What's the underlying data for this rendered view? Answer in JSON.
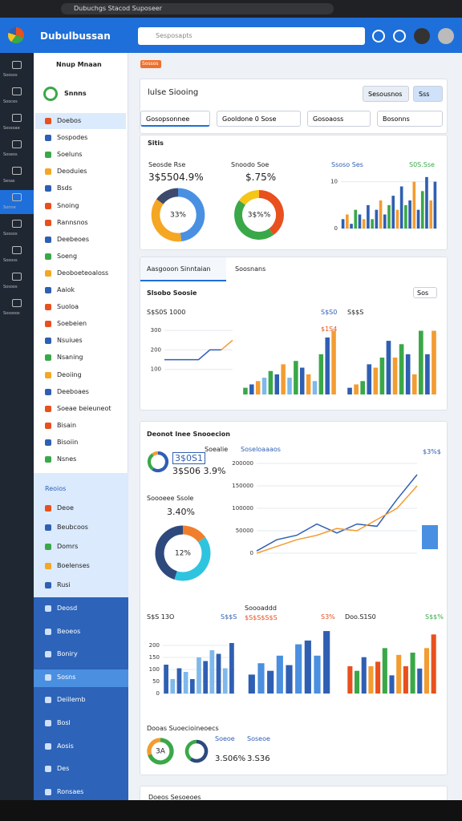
{
  "browser": {
    "url": "Dubuchgs Stacod Suposeer"
  },
  "header": {
    "title": "Dubulbussan",
    "search": "Sesposapts"
  },
  "rail": [
    "Soosos",
    "Sooces",
    "Sossoae",
    "Soseos",
    "Sesas",
    "Sonne",
    "Soosos",
    "Soooss",
    "Sosoos",
    "Sosooos"
  ],
  "sidebar": {
    "title": "Nnup Mnaan",
    "active": "Snnns",
    "items": [
      "Doebos",
      "Sospodes",
      "Soeluns",
      "Deoduies",
      "Bsds",
      "Snoing",
      "Rannsnos",
      "Deebeoes",
      "Soeng",
      "Deoboeteoaloss",
      "Aaiok",
      "Suoloa",
      "Soebeien",
      "Nsuiues",
      "Nsaning",
      "Deoiing",
      "Deeboaes",
      "Soeae beieuneot",
      "Bisain",
      "Bisoiin",
      "Nsnes"
    ],
    "section": "Reoios",
    "items2": [
      "Deoe",
      "Beubcoos",
      "Domrs",
      "Boelenses",
      "Rusi"
    ],
    "items3": [
      "Deosd",
      "Beoeos",
      "Boniry",
      "Sosns",
      "Deiilemb",
      "Bosl",
      "Aosis",
      "Des",
      "Ronsaes"
    ]
  },
  "main": {
    "chip": "Sossos",
    "title": "lulse Siooing",
    "button": "Sesousnos",
    "button2": "Sss",
    "filters": [
      "Gosopsonnee",
      "Gooldone 0 Sose",
      "Gosoaoss",
      "Bosonns"
    ],
    "card1": {
      "title": "Sitis",
      "l1": "Seosde Rse",
      "v1": "3$5504.9%",
      "l2": "Snoodo Soe",
      "v2": "$.75%",
      "l3": "Ssoso Ses",
      "l4": "S0S.Sse"
    },
    "card2": {
      "tab1": "Aasgooon Sinntaian",
      "tab2": "Soosnans",
      "subtitle": "Slsobo Soosie",
      "select": "Sos",
      "l1": "S$S0S 1000",
      "l2": "S$S0",
      "l3": "S$$S",
      "l4": "$1S4"
    },
    "card3": {
      "title": "Deonot lnee Snooecion",
      "l1": "Soealie",
      "v1": "3$0S1",
      "v2": "3$S06 3.9%",
      "l2": "Soseloaaaos",
      "l3": "$3%$",
      "l4": "Soooeee Ssole",
      "v3": "3.40%",
      "b1": "S$S 13O",
      "b2": "S$$S",
      "b3": "Soooaddd",
      "b4": "$S$S$S$S",
      "b5": "S3%",
      "b6": "Doo.S1S0",
      "b7": "S$$%",
      "d1": "Dooas Suoecioineoecs",
      "d2": "Soeoe",
      "d3": "Soseoe",
      "d4": "3.S06%",
      "d5": "3.S36"
    },
    "card4": {
      "title": "Doeos Sesoeoes"
    }
  },
  "charts": [
    {
      "type": "donut",
      "values": [
        48,
        37,
        15
      ],
      "colors": [
        "#4a90e2",
        "#f5a623",
        "#3d4a6b"
      ],
      "label": "33%"
    },
    {
      "type": "donut",
      "values": [
        40,
        45,
        15
      ],
      "colors": [
        "#e8501e",
        "#3aa848",
        "#f5c518"
      ],
      "label": "3$%%"
    },
    {
      "type": "bar",
      "values": [
        2,
        3,
        1,
        4,
        3,
        2,
        5,
        2,
        4,
        6,
        3,
        5,
        7,
        4,
        9,
        5,
        6,
        10,
        4,
        8,
        11,
        6,
        10
      ],
      "colors": [
        "#2f5fb3",
        "#f39c32",
        "#2f5fb3",
        "#3aa848"
      ],
      "ylim": [
        0,
        12
      ],
      "yticks": [
        0,
        10
      ]
    },
    {
      "type": "line",
      "series": [
        {
          "color": "#2f5fb3",
          "values": [
            150,
            150,
            150,
            150,
            200,
            200,
            null
          ]
        },
        {
          "color": "#f39c32",
          "values": [
            null,
            null,
            null,
            null,
            null,
            200,
            250
          ]
        }
      ],
      "ylim": [
        0,
        350
      ],
      "yticks": [
        100,
        200,
        300
      ]
    },
    {
      "type": "bar",
      "values": [
        10,
        15,
        20,
        25,
        35,
        30,
        45,
        25,
        50,
        40,
        30,
        20,
        60,
        85,
        95
      ],
      "colors": [
        "#3aa848",
        "#2f5fb3",
        "#f39c32",
        "#7fb8ea"
      ],
      "ylim": [
        0,
        110
      ]
    },
    {
      "type": "bar",
      "values": [
        10,
        15,
        20,
        45,
        40,
        55,
        80,
        55,
        75,
        60,
        30,
        95,
        60,
        95
      ],
      "colors": [
        "#2f5fb3",
        "#f39c32",
        "#3aa848"
      ],
      "ylim": [
        0,
        110
      ]
    },
    {
      "type": "donut",
      "values": [
        60,
        30,
        10
      ],
      "colors": [
        "#2f5fb3",
        "#3aa848",
        "#f39c32"
      ]
    },
    {
      "type": "donut",
      "values": [
        15,
        40,
        45
      ],
      "colors": [
        "#f07f2b",
        "#2ec4e0",
        "#2e4a7d"
      ],
      "label": "12%"
    },
    {
      "type": "line",
      "series": [
        {
          "color": "#2f5fb3",
          "values": [
            5000,
            30000,
            40000,
            65000,
            45000,
            65000,
            60000,
            120000,
            175000
          ]
        },
        {
          "color": "#f39c32",
          "values": [
            0,
            15000,
            30000,
            40000,
            55000,
            50000,
            75000,
            100000,
            150000
          ]
        }
      ],
      "ylim": [
        0,
        200000
      ],
      "yticks": [
        0,
        50000,
        100000,
        150000,
        200000
      ]
    },
    {
      "type": "bar",
      "values": [
        120,
        60,
        105,
        90,
        60,
        150,
        135,
        180,
        165,
        105,
        210
      ],
      "colors": [
        "#2f5fb3",
        "#7fb8ea"
      ],
      "ylim": [
        0,
        250
      ],
      "yticks": [
        0,
        50,
        100,
        150,
        200
      ]
    },
    {
      "type": "bar",
      "values": [
        50,
        80,
        60,
        100,
        75,
        130,
        140,
        100,
        165
      ],
      "colors": [
        "#2f5fb3",
        "#4a8fe0"
      ],
      "ylim": [
        0,
        180
      ]
    },
    {
      "type": "bar",
      "values": [
        60,
        50,
        80,
        60,
        70,
        100,
        40,
        85,
        60,
        90,
        55,
        100,
        130
      ],
      "colors": [
        "#e8501e",
        "#3aa848",
        "#2f5fb3",
        "#f39c32"
      ],
      "ylim": [
        0,
        150
      ]
    },
    {
      "type": "donut",
      "values": [
        70,
        30
      ],
      "colors": [
        "#3aa848",
        "#f39c32"
      ],
      "label": "3A"
    },
    {
      "type": "donut",
      "values": [
        60,
        40
      ],
      "colors": [
        "#2e4a7d",
        "#3aa848"
      ]
    }
  ]
}
